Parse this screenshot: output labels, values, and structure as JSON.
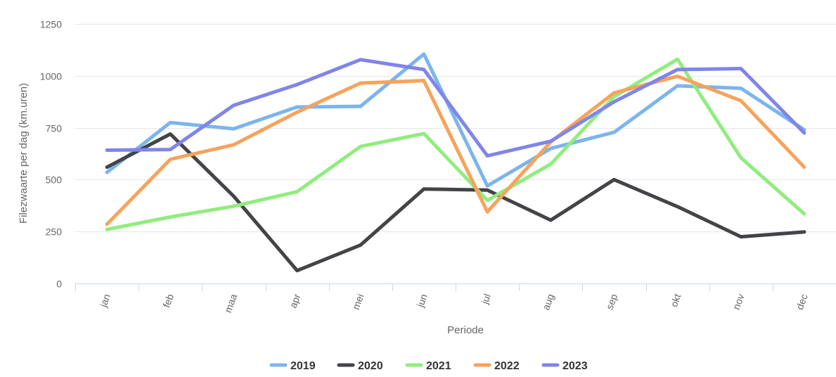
{
  "chart_data": {
    "type": "line",
    "xlabel": "Periode",
    "ylabel": "Filezwaarte per dag (km.uren)",
    "ylim": [
      0,
      1250
    ],
    "yticks": [
      "0",
      "250",
      "500",
      "750",
      "1000",
      "1250"
    ],
    "categories": [
      "jan",
      "feb",
      "maa",
      "apr",
      "mei",
      "jun",
      "jul",
      "aug",
      "sep",
      "okt",
      "nov",
      "dec"
    ],
    "grid": true,
    "legend_position": "bottom",
    "series": [
      {
        "name": "2019",
        "color": "#7cb5ec",
        "values": [
          535,
          775,
          745,
          850,
          853,
          1105,
          470,
          650,
          728,
          952,
          940,
          740
        ]
      },
      {
        "name": "2020",
        "color": "#434348",
        "values": [
          560,
          720,
          420,
          62,
          185,
          455,
          450,
          305,
          500,
          370,
          225,
          248
        ]
      },
      {
        "name": "2021",
        "color": "#90ed7d",
        "values": [
          260,
          320,
          372,
          442,
          660,
          722,
          400,
          575,
          900,
          1080,
          605,
          335
        ]
      },
      {
        "name": "2022",
        "color": "#f7a35c",
        "values": [
          285,
          598,
          668,
          825,
          965,
          977,
          345,
          682,
          918,
          998,
          880,
          560
        ]
      },
      {
        "name": "2023",
        "color": "#8085e9",
        "values": [
          642,
          645,
          858,
          958,
          1078,
          1030,
          615,
          685,
          875,
          1030,
          1035,
          725
        ]
      }
    ]
  }
}
